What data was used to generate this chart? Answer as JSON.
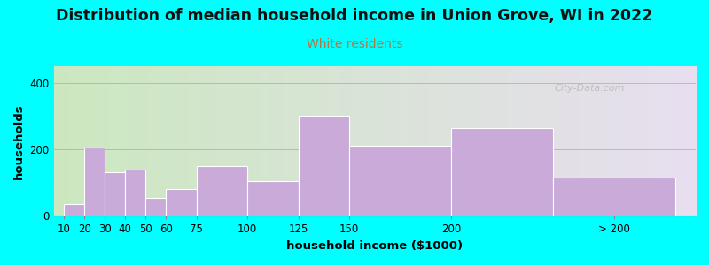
{
  "title": "Distribution of median household income in Union Grove, WI in 2022",
  "subtitle": "White residents",
  "xlabel": "household income ($1000)",
  "ylabel": "households",
  "bar_edges": [
    10,
    20,
    30,
    40,
    50,
    60,
    75,
    100,
    125,
    150,
    200,
    250,
    310
  ],
  "bar_values": [
    35,
    205,
    130,
    140,
    55,
    80,
    150,
    105,
    300,
    210,
    265,
    115
  ],
  "bar_xtick_labels": [
    "10",
    "20",
    "30",
    "40",
    "50",
    "60",
    "75",
    "100",
    "125",
    "150",
    "200",
    "> 200"
  ],
  "bar_xtick_positions": [
    10,
    20,
    30,
    40,
    50,
    60,
    75,
    100,
    125,
    150,
    200,
    280
  ],
  "bar_color": "#c9aad8",
  "bar_edgecolor": "#ffffff",
  "ylim": [
    0,
    450
  ],
  "xlim": [
    5,
    320
  ],
  "yticks": [
    0,
    200,
    400
  ],
  "background_color": "#00ffff",
  "plot_bg_gradient_left": "#cce8c0",
  "plot_bg_gradient_right": "#e8dff0",
  "title_fontsize": 12.5,
  "subtitle_fontsize": 10,
  "subtitle_color": "#b07840",
  "axis_label_fontsize": 9.5,
  "tick_fontsize": 8.5,
  "watermark": "City-Data.com"
}
